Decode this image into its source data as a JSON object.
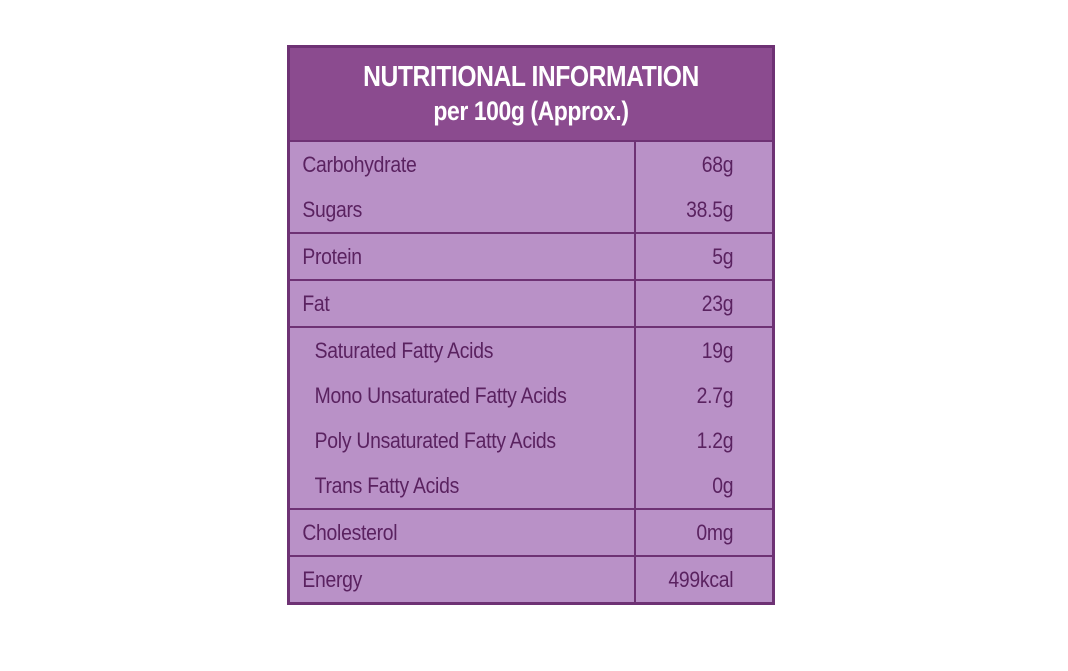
{
  "header": {
    "title": "NUTRITIONAL INFORMATION",
    "subtitle": "per 100g (Approx.)"
  },
  "table": {
    "groups": [
      [
        [
          "Carbohydrate",
          "68g"
        ],
        [
          "Sugars",
          "38.5g"
        ]
      ],
      [
        [
          "Protein",
          "5g"
        ]
      ],
      [
        [
          "Fat",
          "23g"
        ]
      ],
      [
        [
          "Saturated Fatty Acids",
          "19g"
        ],
        [
          "Mono Unsaturated Fatty Acids",
          "2.7g"
        ],
        [
          "Poly Unsaturated Fatty Acids",
          "1.2g"
        ],
        [
          "Trans Fatty Acids",
          "0g"
        ]
      ],
      [
        [
          "Cholesterol",
          "0mg"
        ]
      ],
      [
        [
          "Energy",
          "499kcal"
        ]
      ]
    ]
  }
}
